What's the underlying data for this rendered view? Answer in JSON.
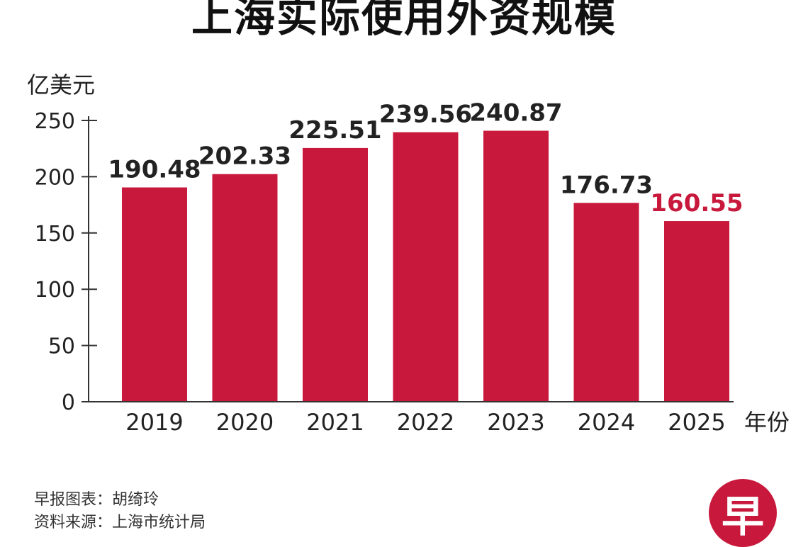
{
  "title": "上海实际使用外资规模",
  "colors": {
    "bar": "#c8193c",
    "highlight_label": "#c8193c",
    "text": "#222222",
    "axis": "#333333"
  },
  "chart_data": {
    "type": "bar",
    "title": "上海实际使用外资规模",
    "ylabel": "亿美元",
    "xlabel": "年份",
    "categories": [
      "2019",
      "2020",
      "2021",
      "2022",
      "2023",
      "2024",
      "2025"
    ],
    "values": [
      190.48,
      202.33,
      225.51,
      239.56,
      240.87,
      176.73,
      160.55
    ],
    "value_labels": [
      "190.48",
      "202.33",
      "225.51",
      "239.56",
      "240.87",
      "176.73",
      "160.55"
    ],
    "highlight_index": 6,
    "ylim": [
      0,
      250
    ],
    "yticks": [
      0,
      50,
      100,
      150,
      200,
      250
    ],
    "grid": false
  },
  "credits": {
    "graphic": "早报图表：胡绮玲",
    "source": "资料来源：上海市统计局"
  },
  "logo": {
    "glyph": "早"
  }
}
